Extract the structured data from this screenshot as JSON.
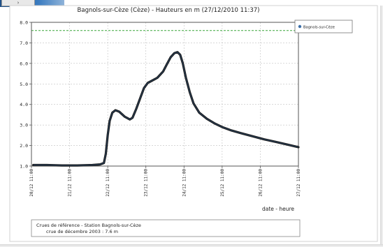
{
  "window": {
    "tab_glyph": "›"
  },
  "chart_data": {
    "type": "line",
    "title": "Bagnols-sur-Cèze (Cèze) - Hauteurs en m (27/12/2010 11:37)",
    "xlabel": "date - heure",
    "ylabel": "",
    "ylim": [
      1.0,
      8.0
    ],
    "yticks": [
      "1.0",
      "2.0",
      "3.0",
      "4.0",
      "5.0",
      "6.0",
      "7.0",
      "8.0"
    ],
    "xticks": [
      "20/12 11:00",
      "21/12 11:00",
      "22/12 11:00",
      "23/12 11:00",
      "24/12 11:00",
      "25/12 11:00",
      "26/12 11:00",
      "27/12 11:00"
    ],
    "xlim_days": [
      0,
      7
    ],
    "reference_level": 7.6,
    "legend": {
      "position": "top-right",
      "label": "Bagnols-sur-Cèze"
    },
    "grid": true,
    "colors": {
      "series": "#1a1a1a",
      "highlight": "#3a6ea8",
      "reference": "#3aa63a",
      "grid": "#c0c0c0"
    },
    "series": [
      {
        "name": "Bagnols-sur-Cèze",
        "points": [
          [
            0.05,
            1.05
          ],
          [
            0.4,
            1.05
          ],
          [
            0.8,
            1.03
          ],
          [
            1.2,
            1.03
          ],
          [
            1.6,
            1.05
          ],
          [
            1.8,
            1.08
          ],
          [
            1.9,
            1.15
          ],
          [
            1.95,
            1.6
          ],
          [
            2.0,
            2.5
          ],
          [
            2.05,
            3.2
          ],
          [
            2.12,
            3.6
          ],
          [
            2.2,
            3.72
          ],
          [
            2.3,
            3.65
          ],
          [
            2.45,
            3.4
          ],
          [
            2.58,
            3.27
          ],
          [
            2.65,
            3.35
          ],
          [
            2.75,
            3.8
          ],
          [
            2.85,
            4.3
          ],
          [
            2.95,
            4.8
          ],
          [
            3.05,
            5.05
          ],
          [
            3.15,
            5.15
          ],
          [
            3.3,
            5.3
          ],
          [
            3.45,
            5.6
          ],
          [
            3.55,
            5.95
          ],
          [
            3.65,
            6.3
          ],
          [
            3.75,
            6.5
          ],
          [
            3.83,
            6.55
          ],
          [
            3.9,
            6.42
          ],
          [
            3.97,
            6.0
          ],
          [
            4.05,
            5.3
          ],
          [
            4.15,
            4.6
          ],
          [
            4.25,
            4.05
          ],
          [
            4.4,
            3.6
          ],
          [
            4.6,
            3.3
          ],
          [
            4.8,
            3.08
          ],
          [
            5.0,
            2.9
          ],
          [
            5.25,
            2.73
          ],
          [
            5.5,
            2.6
          ],
          [
            5.8,
            2.45
          ],
          [
            6.1,
            2.3
          ],
          [
            6.4,
            2.18
          ],
          [
            6.7,
            2.05
          ],
          [
            7.0,
            1.92
          ]
        ]
      }
    ]
  },
  "reference_box": {
    "line1": "Crues de référence - Station Bagnols-sur-Cèze",
    "line2": "crue de décembre 2003 : 7.6 m"
  }
}
